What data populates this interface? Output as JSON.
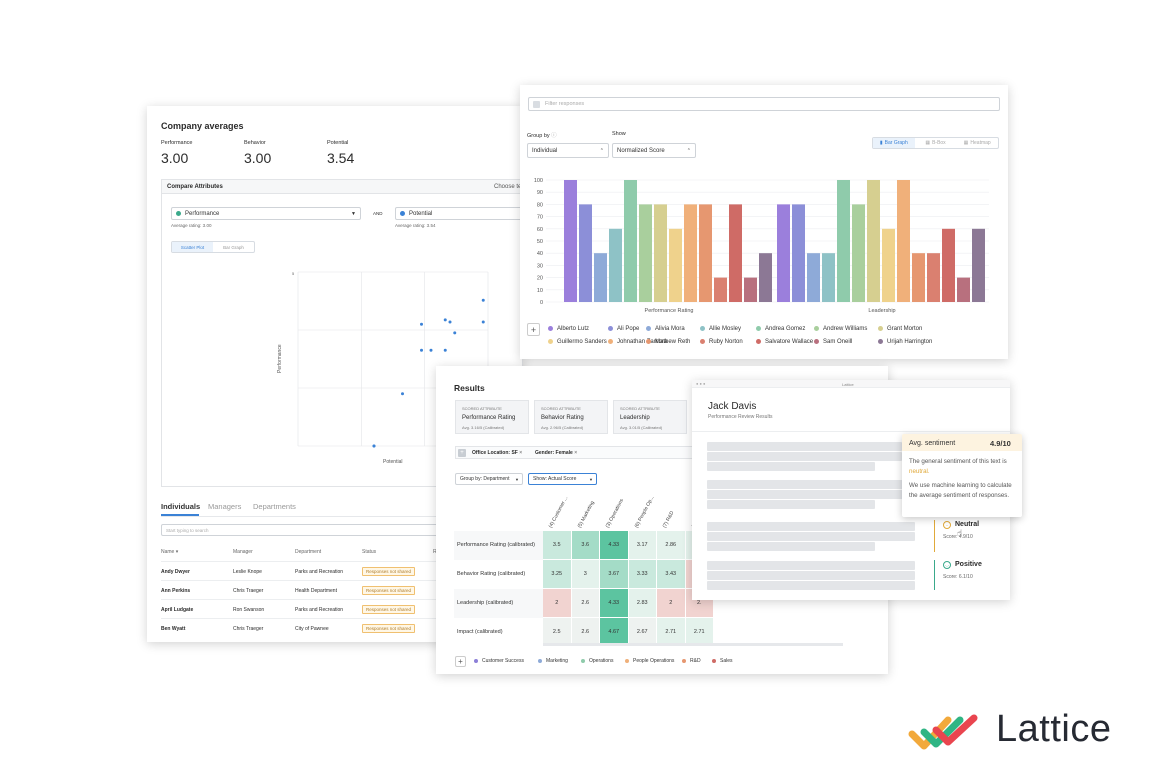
{
  "colors": {
    "accent": "#3b82d6",
    "neutral_sentiment": "#e0a93a",
    "positive_sentiment": "#3aa98b"
  },
  "company": {
    "title": "Company averages",
    "stats": [
      {
        "label": "Performance",
        "value": "3.00"
      },
      {
        "label": "Behavior",
        "value": "3.00"
      },
      {
        "label": "Potential",
        "value": "3.54"
      }
    ],
    "compare_title": "Compare Attributes",
    "choose_label": "Choose te",
    "select1": "Performance",
    "and_label": "AND",
    "select2": "Potential",
    "avg1": "Average rating: 3.00",
    "avg2": "Average rating: 3.54",
    "toggle": [
      "Scatter Plot",
      "Bar Graph"
    ],
    "scatter": {
      "ylabel": "Performance",
      "xlabel": "Potential",
      "ytick": "5",
      "points": [
        [
          2.6,
          1
        ],
        [
          2.6,
          1
        ],
        [
          3.2,
          2.2
        ],
        [
          3.6,
          3.8
        ],
        [
          3.6,
          3.2
        ],
        [
          3.8,
          3.2
        ],
        [
          4.1,
          3.2
        ],
        [
          4.3,
          3.6
        ],
        [
          4.1,
          3.9
        ],
        [
          4.2,
          3.85
        ],
        [
          4.9,
          4.35
        ],
        [
          4.9,
          3.85
        ]
      ]
    },
    "tabs": [
      "Individuals",
      "Managers",
      "Departments"
    ],
    "search_placeholder": "Start typing to search",
    "columns": [
      "Name",
      "Manager",
      "Department",
      "Status",
      "R"
    ],
    "rows": [
      {
        "name": "Andy Dwyer",
        "manager": "Leslie Knope",
        "department": "Parks and Recreation",
        "status": "Responses not shared"
      },
      {
        "name": "Ann Perkins",
        "manager": "Chris Traeger",
        "department": "Health Department",
        "status": "Responses not shared"
      },
      {
        "name": "April Ludgate",
        "manager": "Ron Swanson",
        "department": "Parks and Recreation",
        "status": "Responses not shared"
      },
      {
        "name": "Ben Wyatt",
        "manager": "Chris Traeger",
        "department": "City of Pawnee",
        "status": "Responses not shared"
      }
    ]
  },
  "bars": {
    "filter_placeholder": "Filter responses",
    "group_label": "Group by",
    "show_label": "Show",
    "group_value": "Individual",
    "show_value": "Normalized Score",
    "view_tabs": [
      "Bar Graph",
      "B-Box",
      "Heatmap"
    ],
    "chart_data": {
      "type": "bar",
      "categories": [
        "Performance Rating",
        "Leadership"
      ],
      "yticks": [
        "100",
        "90",
        "80",
        "70",
        "60",
        "50",
        "40",
        "30",
        "20",
        "10",
        "0"
      ],
      "ylim": [
        0,
        100
      ],
      "series": [
        {
          "name": "Alberto Lutz",
          "color": "#9b7fdc",
          "values": [
            100,
            80
          ]
        },
        {
          "name": "Ali Pope",
          "color": "#8c8fd8",
          "values": [
            80,
            80
          ]
        },
        {
          "name": "Alivia Mora",
          "color": "#8eaad8",
          "values": [
            40,
            40
          ]
        },
        {
          "name": "Allie Mosley",
          "color": "#8ec2c6",
          "values": [
            60,
            40
          ]
        },
        {
          "name": "Andrea Gomez",
          "color": "#8fcbab",
          "values": [
            100,
            100
          ]
        },
        {
          "name": "Andrew Williams",
          "color": "#a9cf9d",
          "values": [
            80,
            80
          ]
        },
        {
          "name": "Grant Morton",
          "color": "#d6cf90",
          "values": [
            80,
            100
          ]
        },
        {
          "name": "Guillermo Sanders",
          "color": "#efd28c",
          "values": [
            60,
            60
          ]
        },
        {
          "name": "Johnathan Zamora",
          "color": "#f0b07a",
          "values": [
            80,
            100
          ]
        },
        {
          "name": "Mathew Reth",
          "color": "#e69770",
          "values": [
            80,
            40
          ]
        },
        {
          "name": "Ruby Norton",
          "color": "#da8070",
          "values": [
            20,
            40
          ]
        },
        {
          "name": "Salvatore Wallace",
          "color": "#cf6b66",
          "values": [
            80,
            60
          ]
        },
        {
          "name": "Sam Oneill",
          "color": "#b8707e",
          "values": [
            20,
            20
          ]
        },
        {
          "name": "Urijah Harrington",
          "color": "#8c7895",
          "values": [
            40,
            60
          ]
        }
      ]
    }
  },
  "results": {
    "title": "Results",
    "attrs": [
      {
        "label": "SCORED ATTRIBUTE",
        "name": "Performance Rating",
        "avg": "Avg. 3.16/5 (Calibrated)"
      },
      {
        "label": "SCORED ATTRIBUTE",
        "name": "Behavior Rating",
        "avg": "Avg. 2.96/5 (Calibrated)"
      },
      {
        "label": "SCORED ATTRIBUTE",
        "name": "Leadership",
        "avg": "Avg. 3.01/5 (Calibrated)"
      }
    ],
    "filters": [
      "Office Location: SF",
      "Gender: Female"
    ],
    "group_by": "Group by: Department",
    "show": "Show: Actual Score",
    "columns": [
      "(4) Customer ...",
      "(5) Marketing",
      "(3) Operations",
      "(6) People Op...",
      "(7) R&D",
      "(3"
    ],
    "rows": [
      {
        "label": "Performance Rating (calibrated)",
        "cells": [
          "3.5",
          "3.6",
          "4.33",
          "3.17",
          "2.86",
          "3."
        ]
      },
      {
        "label": "Behavior Rating (calibrated)",
        "cells": [
          "3.25",
          "3",
          "3.67",
          "3.33",
          "3.43",
          "2."
        ]
      },
      {
        "label": "Leadership (calibrated)",
        "cells": [
          "2",
          "2.6",
          "4.33",
          "2.83",
          "2",
          "2."
        ]
      },
      {
        "label": "Impact (calibrated)",
        "cells": [
          "2.5",
          "2.6",
          "4.67",
          "2.67",
          "2.71",
          "2.71"
        ]
      }
    ],
    "legend": [
      {
        "name": "Customer Success",
        "color": "#8c7fd8"
      },
      {
        "name": "Marketing",
        "color": "#8eaad8"
      },
      {
        "name": "Operations",
        "color": "#8fcbab"
      },
      {
        "name": "People Operations",
        "color": "#efb07a"
      },
      {
        "name": "R&D",
        "color": "#e69770"
      },
      {
        "name": "Sales",
        "color": "#cf6b66"
      }
    ]
  },
  "review": {
    "window_title": "Lattice",
    "name": "Jack Davis",
    "subtitle": "Performance Review Results",
    "tooltip_title": "Avg. sentiment",
    "tooltip_score": "4.9/10",
    "tooltip_line1": "The general sentiment of this text is",
    "tooltip_word": "neutral.",
    "tooltip_line2": "We use machine learning to calculate the average sentiment of responses.",
    "neutral_label": "Neutral",
    "neutral_score": "Score: 4.9/10",
    "positive_label": "Positive",
    "positive_score": "Score: 6.1/10"
  },
  "logo": {
    "text": "Lattice"
  }
}
